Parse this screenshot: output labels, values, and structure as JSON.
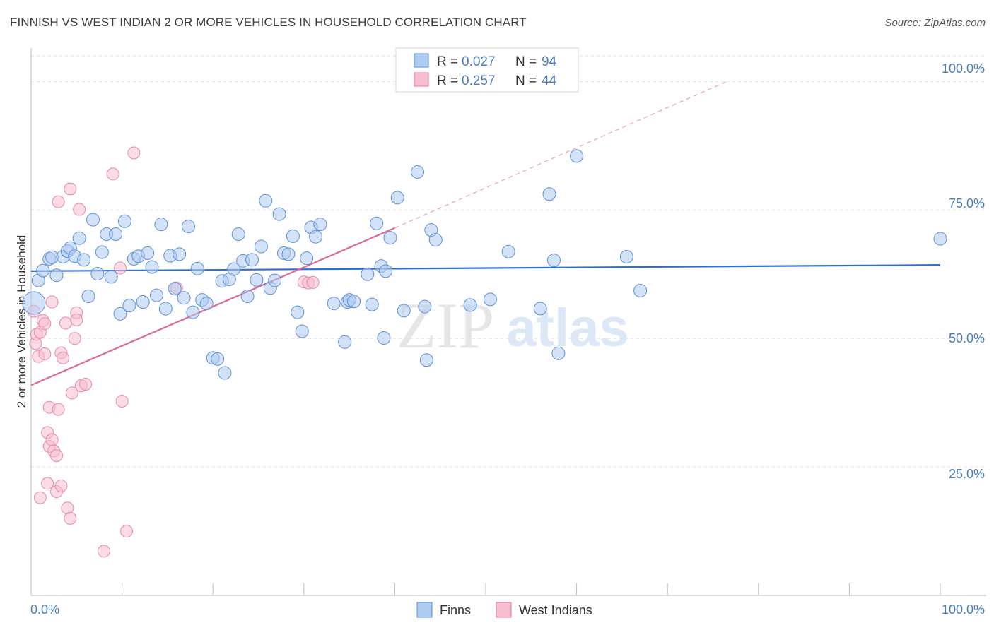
{
  "title": "FINNISH VS WEST INDIAN 2 OR MORE VEHICLES IN HOUSEHOLD CORRELATION CHART",
  "source": "Source: ZipAtlas.com",
  "watermark": {
    "zip": "ZIP",
    "atlas": "atlas"
  },
  "colors": {
    "finns": "#5b8fd8",
    "finns_fill": "#aecbf0",
    "west_indians": "#e07aa0",
    "west_indians_fill": "#f7bdd0",
    "accent_text": "#4a7cc0"
  },
  "chart_data": {
    "type": "scatter",
    "title": "FINNISH VS WEST INDIAN 2 OR MORE VEHICLES IN HOUSEHOLD CORRELATION CHART",
    "xlabel": "",
    "ylabel": "2 or more Vehicles in Household",
    "xlim": [
      0,
      100
    ],
    "ylim": [
      0,
      105
    ],
    "x_tick_labels": [
      "0.0%",
      "100.0%"
    ],
    "y_tick_labels": [
      "25.0%",
      "50.0%",
      "75.0%",
      "100.0%"
    ],
    "y_ticks": [
      25,
      50,
      75,
      100
    ],
    "legend": [
      {
        "name": "Finns",
        "r_label": "R =",
        "r_value": "0.027",
        "n_label": "N =",
        "n_value": "94"
      },
      {
        "name": "West Indians",
        "r_label": "R =",
        "r_value": "0.257",
        "n_label": "N =",
        "n_value": "44"
      }
    ],
    "series": [
      {
        "name": "Finns",
        "trend": {
          "x0": 0,
          "y0": 63.1,
          "x1": 100,
          "y1": 64.3
        },
        "points": [
          [
            0.3,
            56.9
          ],
          [
            0.8,
            61.3
          ],
          [
            1.3,
            63.2
          ],
          [
            2.0,
            65.5
          ],
          [
            2.3,
            65.8
          ],
          [
            2.8,
            62.3
          ],
          [
            3.5,
            65.9
          ],
          [
            4.0,
            67.0
          ],
          [
            4.3,
            67.6
          ],
          [
            4.8,
            66.0
          ],
          [
            5.3,
            69.5
          ],
          [
            5.8,
            65.3
          ],
          [
            6.3,
            58.2
          ],
          [
            6.8,
            73.1
          ],
          [
            7.3,
            62.6
          ],
          [
            7.8,
            66.8
          ],
          [
            8.3,
            70.3
          ],
          [
            8.8,
            62.0
          ],
          [
            9.3,
            70.3
          ],
          [
            9.8,
            54.8
          ],
          [
            10.3,
            72.8
          ],
          [
            10.8,
            56.4
          ],
          [
            11.3,
            65.5
          ],
          [
            11.8,
            66.0
          ],
          [
            12.3,
            57.1
          ],
          [
            12.8,
            66.6
          ],
          [
            13.3,
            63.9
          ],
          [
            13.8,
            58.4
          ],
          [
            14.3,
            72.2
          ],
          [
            14.8,
            55.8
          ],
          [
            15.3,
            66.1
          ],
          [
            15.8,
            59.7
          ],
          [
            16.3,
            66.4
          ],
          [
            16.8,
            57.9
          ],
          [
            17.3,
            71.8
          ],
          [
            17.8,
            55.1
          ],
          [
            18.3,
            63.6
          ],
          [
            18.8,
            57.5
          ],
          [
            19.3,
            56.8
          ],
          [
            20.0,
            46.2
          ],
          [
            20.5,
            46.0
          ],
          [
            21.0,
            61.2
          ],
          [
            21.3,
            43.3
          ],
          [
            21.8,
            61.5
          ],
          [
            22.3,
            63.5
          ],
          [
            22.8,
            70.3
          ],
          [
            23.3,
            65.1
          ],
          [
            23.8,
            58.2
          ],
          [
            24.3,
            65.3
          ],
          [
            24.8,
            61.4
          ],
          [
            25.3,
            67.9
          ],
          [
            25.8,
            76.8
          ],
          [
            26.3,
            59.8
          ],
          [
            26.8,
            61.3
          ],
          [
            27.3,
            74.2
          ],
          [
            27.8,
            66.6
          ],
          [
            28.3,
            66.4
          ],
          [
            28.8,
            69.9
          ],
          [
            29.3,
            55.1
          ],
          [
            29.8,
            51.4
          ],
          [
            30.3,
            65.6
          ],
          [
            30.8,
            71.6
          ],
          [
            31.3,
            69.8
          ],
          [
            31.8,
            72.2
          ],
          [
            33.3,
            56.8
          ],
          [
            34.5,
            49.3
          ],
          [
            34.8,
            57.1
          ],
          [
            35.0,
            57.5
          ],
          [
            35.5,
            57.2
          ],
          [
            37.0,
            62.5
          ],
          [
            37.5,
            56.6
          ],
          [
            38.0,
            72.4
          ],
          [
            38.5,
            64.1
          ],
          [
            38.8,
            50.1
          ],
          [
            39.0,
            63.1
          ],
          [
            39.5,
            69.6
          ],
          [
            40.3,
            77.4
          ],
          [
            41.0,
            55.4
          ],
          [
            42.5,
            82.4
          ],
          [
            43.3,
            56.2
          ],
          [
            43.5,
            45.8
          ],
          [
            44.0,
            71.1
          ],
          [
            44.5,
            69.2
          ],
          [
            48.3,
            56.5
          ],
          [
            50.5,
            57.6
          ],
          [
            52.5,
            66.9
          ],
          [
            56.0,
            55.8
          ],
          [
            57.0,
            78.1
          ],
          [
            57.5,
            65.2
          ],
          [
            58.0,
            47.1
          ],
          [
            60.0,
            85.5
          ],
          [
            65.5,
            65.9
          ],
          [
            67.0,
            59.3
          ],
          [
            100.0,
            69.4
          ]
        ]
      },
      {
        "name": "West Indians",
        "trend": {
          "x0": 0,
          "y0": 40.9,
          "x1": 40.0,
          "y1": 71.5
        },
        "trend_dashed": {
          "x0": 40.0,
          "y0": 71.5,
          "x1": 76.5,
          "y1": 100.0
        },
        "points": [
          [
            0.3,
            55.3
          ],
          [
            0.5,
            49.0
          ],
          [
            0.6,
            50.8
          ],
          [
            0.8,
            46.5
          ],
          [
            1.0,
            51.2
          ],
          [
            1.0,
            19.0
          ],
          [
            1.3,
            53.5
          ],
          [
            1.5,
            47.0
          ],
          [
            1.5,
            52.9
          ],
          [
            1.8,
            31.7
          ],
          [
            1.8,
            21.8
          ],
          [
            2.0,
            36.6
          ],
          [
            2.0,
            29.0
          ],
          [
            2.3,
            30.3
          ],
          [
            2.3,
            57.1
          ],
          [
            2.5,
            28.1
          ],
          [
            2.8,
            27.2
          ],
          [
            2.8,
            20.2
          ],
          [
            3.0,
            36.2
          ],
          [
            3.0,
            76.6
          ],
          [
            3.3,
            47.2
          ],
          [
            3.3,
            21.3
          ],
          [
            3.5,
            46.2
          ],
          [
            3.8,
            53.0
          ],
          [
            4.0,
            17.0
          ],
          [
            4.3,
            79.1
          ],
          [
            4.3,
            15.0
          ],
          [
            4.5,
            39.4
          ],
          [
            4.8,
            50.0
          ],
          [
            5.0,
            55.0
          ],
          [
            5.0,
            53.6
          ],
          [
            5.3,
            75.1
          ],
          [
            5.5,
            40.8
          ],
          [
            6.0,
            41.1
          ],
          [
            8.0,
            8.6
          ],
          [
            9.0,
            82.0
          ],
          [
            9.8,
            63.7
          ],
          [
            10.0,
            37.8
          ],
          [
            10.5,
            12.5
          ],
          [
            11.3,
            86.1
          ],
          [
            16.0,
            59.8
          ],
          [
            30.0,
            61.0
          ],
          [
            30.5,
            60.8
          ],
          [
            31.0,
            60.9
          ]
        ]
      }
    ]
  }
}
